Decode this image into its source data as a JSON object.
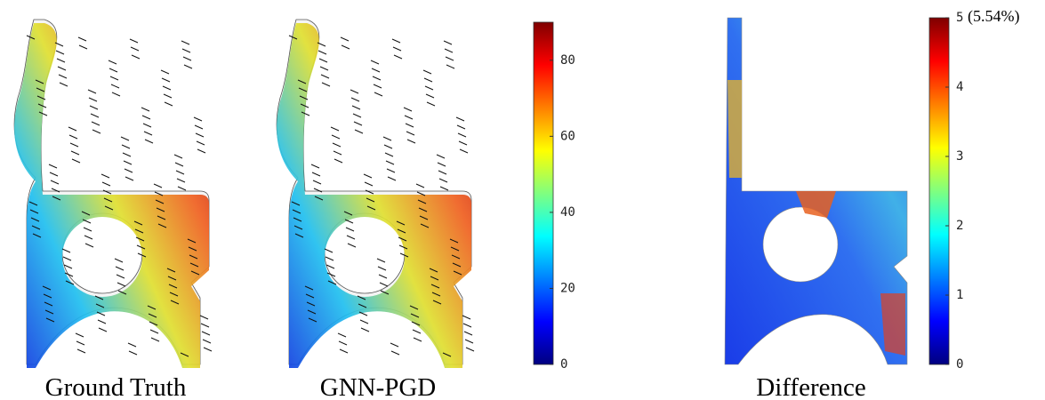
{
  "panels": [
    {
      "label": "Ground Truth"
    },
    {
      "label": "GNN-PGD"
    },
    {
      "label": "Difference"
    }
  ],
  "colorbars": [
    {
      "range": [
        0,
        90
      ],
      "ticks": [
        0,
        20,
        40,
        60,
        80
      ]
    },
    {
      "range": [
        0,
        5
      ],
      "ticks": [
        0,
        1,
        2,
        3,
        4,
        5
      ],
      "annotation": "(5.54%)"
    }
  ]
}
